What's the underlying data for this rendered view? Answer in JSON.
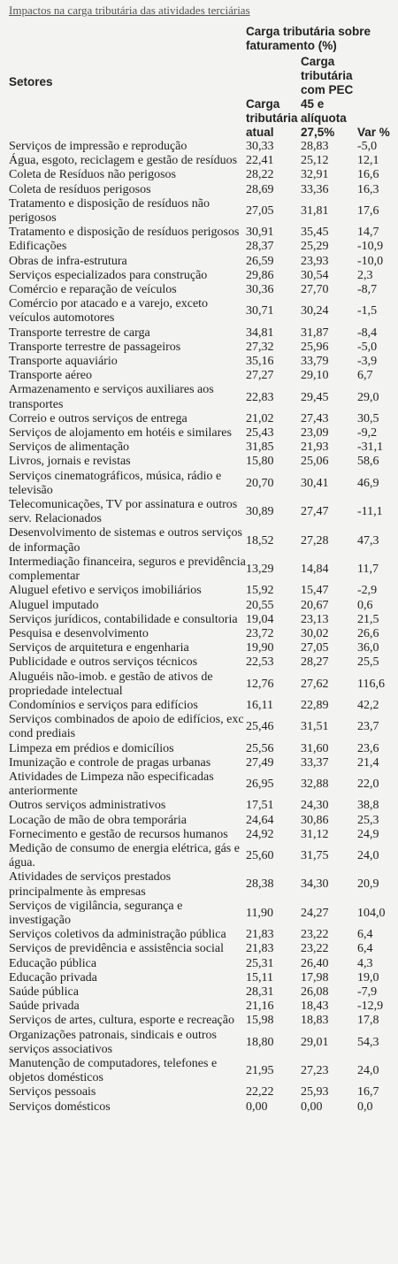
{
  "title": "Impactos na carga tributária das atividades terciárias",
  "table": {
    "headers": {
      "sector": "Setores",
      "group": "Carga tributária sobre faturamento (%)",
      "current": "Carga tributária atual",
      "pec": "Carga tributária com PEC 45 e alíquota 27,5%",
      "var": "Var %"
    },
    "rows": [
      [
        "Serviços de impressão e reprodução",
        "30,33",
        "28,83",
        "-5,0"
      ],
      [
        "Água, esgoto, reciclagem e gestão de resíduos",
        "22,41",
        "25,12",
        "12,1"
      ],
      [
        "Coleta de Resíduos não perigosos",
        "28,22",
        "32,91",
        "16,6"
      ],
      [
        "Coleta de resíduos perigosos",
        "28,69",
        "33,36",
        "16,3"
      ],
      [
        "Tratamento e disposição de resíduos não perigosos",
        "27,05",
        "31,81",
        "17,6"
      ],
      [
        "Tratamento e disposição de resíduos perigosos",
        "30,91",
        "35,45",
        "14,7"
      ],
      [
        "Edificações",
        "28,37",
        "25,29",
        "-10,9"
      ],
      [
        "Obras de infra-estrutura",
        "26,59",
        "23,93",
        "-10,0"
      ],
      [
        "Serviços especializados para construção",
        "29,86",
        "30,54",
        "2,3"
      ],
      [
        "Comércio e reparação de veículos",
        "30,36",
        "27,70",
        "-8,7"
      ],
      [
        "Comércio por atacado e a varejo, exceto veículos automotores",
        "30,71",
        "30,24",
        "-1,5"
      ],
      [
        "Transporte terrestre de carga",
        "34,81",
        "31,87",
        "-8,4"
      ],
      [
        "Transporte terrestre de passageiros",
        "27,32",
        "25,96",
        "-5,0"
      ],
      [
        "Transporte aquaviário",
        "35,16",
        "33,79",
        "-3,9"
      ],
      [
        "Transporte aéreo",
        "27,27",
        "29,10",
        "6,7"
      ],
      [
        "Armazenamento e serviços auxiliares aos transportes",
        "22,83",
        "29,45",
        "29,0"
      ],
      [
        "Correio e outros serviços de entrega",
        "21,02",
        "27,43",
        "30,5"
      ],
      [
        "Serviços de alojamento em hotéis e similares",
        "25,43",
        "23,09",
        "-9,2"
      ],
      [
        "Serviços de alimentação",
        "31,85",
        "21,93",
        "-31,1"
      ],
      [
        "Livros, jornais e revistas",
        "15,80",
        "25,06",
        "58,6"
      ],
      [
        "Serviços cinematográficos, música, rádio e televisão",
        "20,70",
        "30,41",
        "46,9"
      ],
      [
        "Telecomunicações, TV por assinatura e outros serv. Relacionados",
        "30,89",
        "27,47",
        "-11,1"
      ],
      [
        "Desenvolvimento de sistemas e outros serviços de informação",
        "18,52",
        "27,28",
        "47,3"
      ],
      [
        "Intermediação financeira, seguros e previdência complementar",
        "13,29",
        "14,84",
        "11,7"
      ],
      [
        "Aluguel efetivo e serviços imobiliários",
        "15,92",
        "15,47",
        "-2,9"
      ],
      [
        "Aluguel imputado",
        "20,55",
        "20,67",
        "0,6"
      ],
      [
        "Serviços jurídicos, contabilidade e consultoria",
        "19,04",
        "23,13",
        "21,5"
      ],
      [
        "Pesquisa e desenvolvimento",
        "23,72",
        "30,02",
        "26,6"
      ],
      [
        "Serviços de arquitetura e engenharia",
        "19,90",
        "27,05",
        "36,0"
      ],
      [
        "Publicidade e outros serviços técnicos",
        "22,53",
        "28,27",
        "25,5"
      ],
      [
        "Aluguéis não-imob. e gestão de ativos de propriedade intelectual",
        "12,76",
        "27,62",
        "116,6"
      ],
      [
        "Condomínios e serviços para edifícios",
        "16,11",
        "22,89",
        "42,2"
      ],
      [
        "Serviços combinados de apoio de edifícios, exc cond prediais",
        "25,46",
        "31,51",
        "23,7"
      ],
      [
        "Limpeza em prédios e domicílios",
        "25,56",
        "31,60",
        "23,6"
      ],
      [
        "Imunização e controle de pragas urbanas",
        "27,49",
        "33,37",
        "21,4"
      ],
      [
        "Atividades de Limpeza não especificadas anteriormente",
        "26,95",
        "32,88",
        "22,0"
      ],
      [
        "Outros serviços administrativos",
        "17,51",
        "24,30",
        "38,8"
      ],
      [
        "Locação de mão de obra temporária",
        "24,64",
        "30,86",
        "25,3"
      ],
      [
        "Fornecimento e gestão de recursos humanos",
        "24,92",
        "31,12",
        "24,9"
      ],
      [
        "Medição de consumo de energia elétrica, gás e água.",
        "25,60",
        "31,75",
        "24,0"
      ],
      [
        "Atividades de serviços prestados principalmente às empresas",
        "28,38",
        "34,30",
        "20,9"
      ],
      [
        "Serviços de vigilância, segurança e investigação",
        "11,90",
        "24,27",
        "104,0"
      ],
      [
        "Serviços coletivos da administração pública",
        "21,83",
        "23,22",
        "6,4"
      ],
      [
        "Serviços de previdência e assistência social",
        "21,83",
        "23,22",
        "6,4"
      ],
      [
        "Educação pública",
        "25,31",
        "26,40",
        "4,3"
      ],
      [
        "Educação privada",
        "15,11",
        "17,98",
        "19,0"
      ],
      [
        "Saúde pública",
        "28,31",
        "26,08",
        "-7,9"
      ],
      [
        "Saúde privada",
        "21,16",
        "18,43",
        "-12,9"
      ],
      [
        "Serviços de artes, cultura, esporte e recreação",
        "15,98",
        "18,83",
        "17,8"
      ],
      [
        "Organizações patronais, sindicais e outros serviços associativos",
        "18,80",
        "29,01",
        "54,3"
      ],
      [
        "Manutenção de computadores, telefones e objetos domésticos",
        "21,95",
        "27,23",
        "24,0"
      ],
      [
        "Serviços pessoais",
        "22,22",
        "25,93",
        "16,7"
      ],
      [
        "Serviços domésticos",
        "0,00",
        "0,00",
        "0,0"
      ]
    ]
  }
}
